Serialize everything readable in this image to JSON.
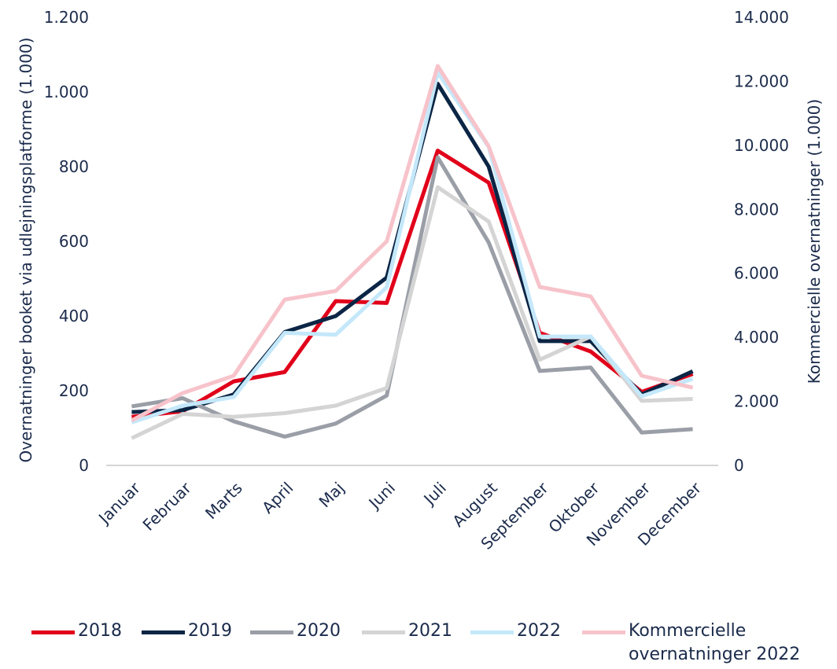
{
  "chart_data": {
    "type": "line",
    "categories": [
      "Januar",
      "Februar",
      "Marts",
      "April",
      "Maj",
      "Juni",
      "Juli",
      "August",
      "September",
      "Oktober",
      "November",
      "December"
    ],
    "ylabel": "Overnatninger booket via udlejningsplatforme (1.000)",
    "y2label": "Kommercielle overnatninger (1.000)",
    "ylim": [
      0,
      1200
    ],
    "yticks": [
      0,
      200,
      400,
      600,
      800,
      {
        "value": 1000,
        "label": "1.000"
      },
      {
        "value": 1200,
        "label": "1.200"
      }
    ],
    "y2lim": [
      0,
      14000
    ],
    "y2ticks": [
      0,
      {
        "value": 2000,
        "label": "2.000"
      },
      {
        "value": 4000,
        "label": "4.000"
      },
      {
        "value": 6000,
        "label": "6.000"
      },
      {
        "value": 8000,
        "label": "8.000"
      },
      {
        "value": 10000,
        "label": "10.000"
      },
      {
        "value": 12000,
        "label": "12.000"
      },
      {
        "value": 14000,
        "label": "14.000"
      }
    ],
    "legend": "bottom",
    "series": [
      {
        "name": "2018",
        "color": "#e1001a",
        "values": [
          130,
          145,
          225,
          250,
          440,
          435,
          843,
          757,
          355,
          305,
          197,
          245
        ]
      },
      {
        "name": "2019",
        "color": "#0b2545",
        "values": [
          143,
          148,
          190,
          357,
          400,
          503,
          1022,
          800,
          333,
          333,
          190,
          252
        ]
      },
      {
        "name": "2020",
        "color": "#9a9ea6",
        "values": [
          158,
          180,
          118,
          77,
          112,
          187,
          825,
          597,
          253,
          262,
          88,
          97
        ]
      },
      {
        "name": "2021",
        "color": "#d4d4d4",
        "values": [
          73,
          138,
          130,
          140,
          160,
          207,
          745,
          653,
          283,
          345,
          173,
          178
        ]
      },
      {
        "name": "2022",
        "color": "#c4e8fa",
        "values": [
          115,
          160,
          183,
          355,
          350,
          477,
          1052,
          853,
          345,
          345,
          185,
          232
        ]
      },
      {
        "name": "Kommercielle overnatninger 2022",
        "color": "#f7c3cb",
        "axis": "y2",
        "values": [
          1400,
          2260,
          2800,
          5180,
          5450,
          7000,
          12480,
          9970,
          5575,
          5280,
          2800,
          2430
        ]
      }
    ]
  }
}
